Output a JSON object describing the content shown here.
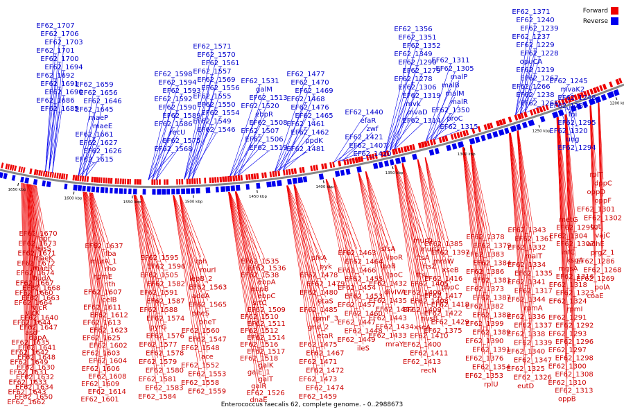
{
  "title": "Enterococcus faecalis 62, complete genome. - 0..2988673",
  "legend": [
    {
      "label": "Forward",
      "color": "#ee0000"
    },
    {
      "label": "Reverse",
      "color": "#0000ee"
    }
  ],
  "colors": {
    "forward": "#ee0000",
    "reverse": "#0000ee",
    "backbone": "#888888"
  },
  "scale_labels": [
    "1650 kbp",
    "1600 kbp",
    "1550 kbp",
    "1500 kbp",
    "1450 kbp",
    "1400 kbp",
    "1350 kbp",
    "1300 kbp",
    "1250 kbp",
    "1200 kbp"
  ],
  "reverse_labels": [
    "EF62_1707",
    "EF62_1706",
    "EF62_1703",
    "EF62_1701",
    "EF62_1700",
    "EF62_1694",
    "EF62_1692",
    "EF62_1691",
    "EF62_1690",
    "EF62_1686",
    "EF62_1685",
    "EF62_1659",
    "EF62_1656",
    "EF62_1646",
    "EF62_1645",
    "maeP",
    "maeE",
    "EF62_1661",
    "EF62_1627",
    "EF62_1626",
    "EF62_1615",
    "EF62_1598",
    "EF62_1594",
    "EF62_1593",
    "EF62_1592",
    "EF62_1590",
    "EF62_1589",
    "EF62_1586",
    "recU",
    "EF62_1575",
    "EF62_1568",
    "EF62_1571",
    "EF62_1570",
    "EF62_1561",
    "EF62_1557",
    "EF62_1569",
    "EF62_1556",
    "EF62_1555",
    "EF62_1550",
    "EF62_1554",
    "EF62_1549",
    "EF62_1546",
    "EF62_1531",
    "galM",
    "EF62_1513",
    "EF62_1520",
    "ebpR",
    "EF62_1508",
    "EF62_1507",
    "EF62_1506",
    "EF62_1519",
    "EF62_1477",
    "EF62_1470",
    "EF62_1469",
    "EF62_1468",
    "EF62_1476",
    "EF62_1465",
    "EF62_1461",
    "EF62_1462",
    "ppdK",
    "EF62_1481",
    "EF62_1440",
    "efaR",
    "zwf",
    "EF62_1421",
    "EF62_1407",
    "EF62_1420",
    "EF62_1356",
    "EF62_1351",
    "EF62_1352",
    "EF62_1349",
    "EF62_1290",
    "EF62_1279",
    "EF62_1278",
    "EF62_1306",
    "EF62_1319",
    "mvk",
    "mvaD",
    "EF62_1314",
    "EF62_1311",
    "EF62_1305",
    "malP",
    "malB",
    "malM",
    "malR",
    "EF62_1350",
    "proC",
    "EF62_1315",
    "EF62_1371",
    "EF62_1240",
    "EF62_1239",
    "EF62_1237",
    "EF62_1229",
    "EF62_1228",
    "opuCA",
    "EF62_1219",
    "EF62_1267",
    "EF62_1266",
    "EF62_1238",
    "EF62_1265",
    "EF62_1245",
    "mvaK2",
    "EF62_1248",
    "EF62_1281",
    "fni",
    "EF62_1295",
    "EF62_1320",
    "ung",
    "EF62_1294"
  ],
  "forward_labels": [
    "EF62_1670",
    "npr",
    "EF62_1673",
    "alsS",
    "EF62_1671",
    "maeK",
    "EF62_1672",
    "maeR",
    "EF62_1674",
    "budA",
    "EF62_1667",
    "EF62_1668",
    "EF62_1660",
    "EF62_1663",
    "EF62_1664",
    "vicR",
    "vicK",
    "EF62_1640",
    "EF62_1644",
    "EF62_1647",
    "asd",
    "dapA",
    "EF62_1635",
    "EF62_1641",
    "EF62_1642",
    "EF62_1648",
    "EF62_1649",
    "EF62_1630",
    "EF62_1631",
    "EF62_1632",
    "EF62_1633",
    "EF62_1634",
    "EF62_1643",
    "EF62_1650",
    "EF62_1662",
    "EF62_1637",
    "fba",
    "murA_1",
    "rho",
    "rpmE",
    "nth",
    "EF62_1607",
    "celB",
    "EF62_1611",
    "EF62_1612",
    "EF62_1613",
    "EF62_1623",
    "EF62_1625",
    "EF62_1602",
    "EF62_1603",
    "EF62_1604",
    "EF62_1606",
    "EF62_1608",
    "EF62_1609",
    "EF62_1614",
    "EF62_1601",
    "EF62_1595",
    "EF62_1596",
    "EF62_1505",
    "EF62_1582",
    "EF62_1591",
    "EF62_1587",
    "EF62_1588",
    "EF62_1574",
    "pyrG",
    "EF62_1576",
    "EF62_1577",
    "EF62_1578",
    "EF62_1579",
    "EF62_1580",
    "EF62_1581",
    "EF62_1583",
    "EF62_1584",
    "rph",
    "murI",
    "lepB_2",
    "EF62_1563",
    "addA",
    "EF62_1565",
    "pheS",
    "pheT",
    "EF62_1560",
    "EF62_1547",
    "EF62_1548",
    "ace",
    "EF62_1552",
    "EF62_1553",
    "EF62_1558",
    "EF62_1559",
    "EF62_1535",
    "EF62_1536",
    "EF62_1538",
    "ebpA",
    "ebpB",
    "ebpC",
    "srtC",
    "EF62_1509",
    "EF62_1510",
    "EF62_1511",
    "EF62_1512",
    "EF62_1514",
    "EF62_1516",
    "EF62_1517",
    "EF62_1518",
    "galK",
    "galE_1",
    "galT",
    "galR",
    "EF62_1526",
    "dnaE",
    "pfkA",
    "pyk",
    "EF62_1478",
    "EF62_1479",
    "EF62_1480",
    "etaS",
    "EF62_1485",
    "rpmF_3",
    "gnd_2",
    "etaR",
    "EF62_1475",
    "EF62_1467",
    "EF62_1471",
    "EF62_1472",
    "EF62_1473",
    "EF62_1474",
    "EF62_1459",
    "EF62_1463",
    "EF62_1464",
    "EF62_1466",
    "EF62_1455",
    "EF62_1454",
    "EF62_1453",
    "EF62_1457",
    "EF62_1460",
    "EF62_1447",
    "EF62_1448",
    "EF62_1449",
    "ileS",
    "sfsA",
    "lpoR",
    "lpoB",
    "lpoC",
    "EF62_1432",
    "divIVA",
    "EF62_1435",
    "EF62_1442",
    "EF62_1443",
    "EF62_1434",
    "EF62_1433",
    "mraY",
    "murD",
    "murG",
    "ftsA",
    "ftsZ",
    "ftsL",
    "EF62_1405",
    "EF62_1406",
    "EF62_1408",
    "EF62_1409",
    "nusB",
    "xseA",
    "EF62_1410",
    "EF62_1400",
    "EF62_1411",
    "EF62_1413",
    "recN",
    "EF62_1385",
    "EF62_1397",
    "mraW",
    "xseB",
    "EF62_1416",
    "pbpC",
    "EF62_1417",
    "EF62_1418",
    "EF62_1422",
    "EF62_1429",
    "EF62_1375",
    "EF62_1378",
    "EF62_1379",
    "EF62_1383",
    "EF62_1384",
    "EF62_1386",
    "EF62_1381",
    "EF62_1373",
    "EF62_1387",
    "EF62_1382",
    "EF62_1388",
    "EF62_1399",
    "EF62_1389",
    "EF62_1390",
    "EF62_1391",
    "EF62_1376",
    "EF62_1354",
    "EF62_1353",
    "rplU",
    "EF62_1343",
    "EF62_1361",
    "EF62_1332",
    "malT",
    "EF62_1334",
    "EF62_1335",
    "EF62_1341",
    "EF62_1317",
    "EF62_1344",
    "rpmA",
    "EF62_1336",
    "EF62_1337",
    "EF62_1338",
    "EF62_1339",
    "EF62_1340",
    "EF62_1347",
    "EF62_1325",
    "EF62_1326",
    "eutD",
    "metG",
    "EF62_1299",
    "EF62_1304",
    "EF62_1307",
    "infC",
    "ksgA",
    "mgsA",
    "EF62_1316",
    "EF62_1318",
    "EF62_1323",
    "EF62_1324",
    "rpmI",
    "EF62_1291",
    "EF62_1292",
    "EF62_1293",
    "EF62_1296",
    "EF62_1297",
    "EF62_1298",
    "EF62_1300",
    "EF62_1308",
    "EF62_1310",
    "EF62_1313",
    "oppB",
    "rplT",
    "dppC",
    "oppD",
    "oppF",
    "EF62_1301",
    "EF62_1302",
    "tgt",
    "vajC",
    "adhE",
    "prgZ_1",
    "EF62_1286",
    "EF62_1268",
    "EF62_1269",
    "polA",
    "coaE"
  ]
}
